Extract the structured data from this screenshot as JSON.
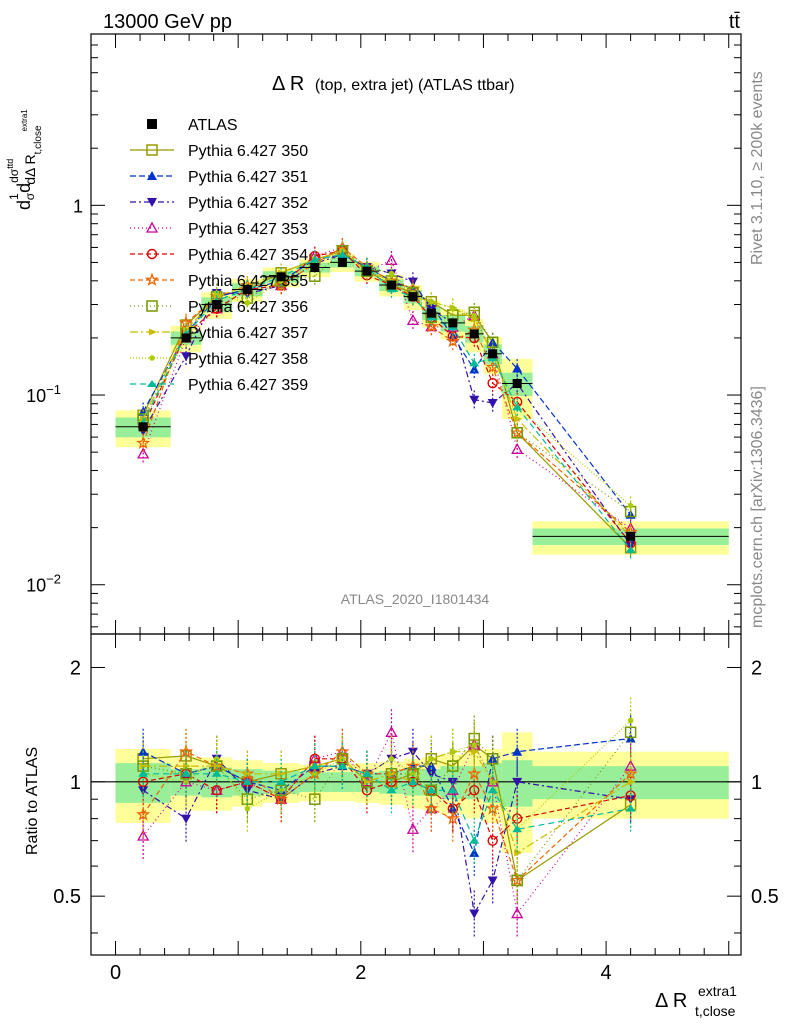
{
  "header": {
    "energy_label": "13000 GeV pp",
    "process_label": "tt̄"
  },
  "side_texts": {
    "rivet": "Rivet 3.1.10, ≥ 200k events",
    "mcplots": "mcplots.cern.ch [arXiv:1306.3436]"
  },
  "chart_data": {
    "type": "scatter",
    "title_main": "Δ R",
    "title_rest": "(top, extra jet) (ATLAS ttbar)",
    "analysis_id": "ATLAS_2020_I1801434",
    "ylabel_main": "1/σ dσ^ttd / dΔ R_{t,close}^{extra1}",
    "ylabel_ratio": "Ratio to ATLAS",
    "xlabel": "Δ R",
    "xlabel_sup": "extra1",
    "xlabel_sub": "t,close",
    "xlim": [
      -0.2,
      5.1
    ],
    "ylim_main": [
      0.0055,
      8.0
    ],
    "yscale_main": "log",
    "ylim_ratio": [
      0.35,
      2.45
    ],
    "yscale_ratio": "log",
    "x_ticks": [
      0,
      2,
      4
    ],
    "y_ticks_main": [
      "1",
      "10^{-1}",
      "10^{-2}"
    ],
    "y_ticks_ratio": [
      "2",
      "1",
      "0.5"
    ],
    "bins": [
      {
        "lo": 0.0,
        "hi": 0.45
      },
      {
        "lo": 0.45,
        "hi": 0.7
      },
      {
        "lo": 0.7,
        "hi": 0.95
      },
      {
        "lo": 0.95,
        "hi": 1.2
      },
      {
        "lo": 1.2,
        "hi": 1.5
      },
      {
        "lo": 1.5,
        "hi": 1.75
      },
      {
        "lo": 1.75,
        "hi": 1.95
      },
      {
        "lo": 1.95,
        "hi": 2.15
      },
      {
        "lo": 2.15,
        "hi": 2.35
      },
      {
        "lo": 2.35,
        "hi": 2.5
      },
      {
        "lo": 2.5,
        "hi": 2.65
      },
      {
        "lo": 2.65,
        "hi": 2.85
      },
      {
        "lo": 2.85,
        "hi": 3.0
      },
      {
        "lo": 3.0,
        "hi": 3.15
      },
      {
        "lo": 3.15,
        "hi": 3.4
      },
      {
        "lo": 3.4,
        "hi": 5.0
      }
    ],
    "x": [
      0.225,
      0.575,
      0.825,
      1.075,
      1.35,
      1.625,
      1.85,
      2.05,
      2.25,
      2.425,
      2.575,
      2.75,
      2.925,
      3.075,
      3.275,
      4.2
    ],
    "data": {
      "name": "ATLAS",
      "color": "#000000",
      "values": [
        0.068,
        0.2,
        0.3,
        0.36,
        0.42,
        0.47,
        0.5,
        0.45,
        0.38,
        0.33,
        0.27,
        0.24,
        0.21,
        0.165,
        0.115,
        0.018
      ],
      "band_inner": [
        0.12,
        0.08,
        0.09,
        0.08,
        0.07,
        0.06,
        0.06,
        0.06,
        0.07,
        0.08,
        0.08,
        0.1,
        0.1,
        0.12,
        0.14,
        0.1
      ],
      "band_outer": [
        0.22,
        0.16,
        0.16,
        0.14,
        0.12,
        0.11,
        0.11,
        0.12,
        0.13,
        0.15,
        0.16,
        0.18,
        0.2,
        0.22,
        0.35,
        0.2
      ]
    },
    "series": [
      {
        "name": "Pythia 6.427 350",
        "color": "#999900",
        "marker": "square-open",
        "dash": "",
        "ratios": [
          1.15,
          1.17,
          1.1,
          1.0,
          1.05,
          1.1,
          1.15,
          1.0,
          1.0,
          1.05,
          1.15,
          1.1,
          1.25,
          1.15,
          0.55,
          0.87
        ]
      },
      {
        "name": "Pythia 6.427 351",
        "color": "#0033cc",
        "marker": "triangle-up",
        "dash": "6,3",
        "ratios": [
          1.2,
          1.05,
          1.1,
          1.0,
          0.95,
          1.1,
          1.1,
          1.05,
          1.05,
          1.1,
          1.1,
          0.85,
          0.65,
          1.15,
          1.2,
          1.3
        ]
      },
      {
        "name": "Pythia 6.427 352",
        "color": "#3311aa",
        "marker": "triangle-down",
        "dash": "6,3,2,3",
        "ratios": [
          0.95,
          0.8,
          1.15,
          0.95,
          0.9,
          1.05,
          1.1,
          1.05,
          1.15,
          1.2,
          1.05,
          1.0,
          0.45,
          0.55,
          1.0,
          0.9
        ]
      },
      {
        "name": "Pythia 6.427 353",
        "color": "#cc0099",
        "marker": "triangle-open",
        "dash": "1,3",
        "ratios": [
          0.72,
          1.0,
          0.95,
          1.0,
          0.9,
          1.15,
          1.2,
          1.0,
          1.35,
          0.75,
          0.85,
          0.95,
          1.25,
          1.0,
          0.45,
          1.1
        ]
      },
      {
        "name": "Pythia 6.427 354",
        "color": "#dd0000",
        "marker": "circle-open",
        "dash": "5,3",
        "ratios": [
          1.0,
          1.05,
          0.95,
          1.0,
          0.9,
          1.15,
          1.15,
          0.95,
          1.0,
          1.0,
          0.95,
          0.85,
          0.95,
          0.7,
          0.8,
          0.92
        ]
      },
      {
        "name": "Pythia 6.427 355",
        "color": "#ee6600",
        "marker": "star",
        "dash": "5,3",
        "ratios": [
          0.82,
          1.2,
          1.1,
          1.05,
          0.9,
          1.05,
          1.2,
          1.05,
          1.05,
          1.1,
          0.85,
          0.8,
          1.05,
          0.85,
          0.55,
          1.05
        ]
      },
      {
        "name": "Pythia 6.427 356",
        "color": "#779900",
        "marker": "square-open",
        "dash": "1,3",
        "ratios": [
          1.1,
          1.05,
          1.1,
          0.9,
          0.95,
          0.9,
          1.15,
          1.0,
          1.05,
          1.05,
          0.95,
          1.1,
          1.3,
          1.15,
          0.55,
          1.35
        ]
      },
      {
        "name": "Pythia 6.427 357",
        "color": "#ccbb00",
        "marker": "tri-right",
        "dash": "8,3,2,3",
        "ratios": [
          1.1,
          1.1,
          1.1,
          1.05,
          1.05,
          1.1,
          1.15,
          1.0,
          1.05,
          1.0,
          1.15,
          1.2,
          1.2,
          1.0,
          0.65,
          1.0
        ]
      },
      {
        "name": "Pythia 6.427 358",
        "color": "#aacc00",
        "marker": "dot-star",
        "dash": "1,2",
        "ratios": [
          1.05,
          1.0,
          1.15,
          0.85,
          0.95,
          1.05,
          1.15,
          1.05,
          1.15,
          1.05,
          1.15,
          1.2,
          1.25,
          1.0,
          0.75,
          1.45
        ]
      },
      {
        "name": "Pythia 6.427 359",
        "color": "#00bb99",
        "marker": "dash-tri",
        "dash": "6,4",
        "ratios": [
          1.05,
          1.05,
          1.05,
          1.0,
          1.0,
          1.1,
          1.1,
          1.05,
          0.95,
          1.0,
          0.95,
          0.95,
          0.7,
          0.95,
          0.75,
          0.85
        ]
      }
    ]
  }
}
